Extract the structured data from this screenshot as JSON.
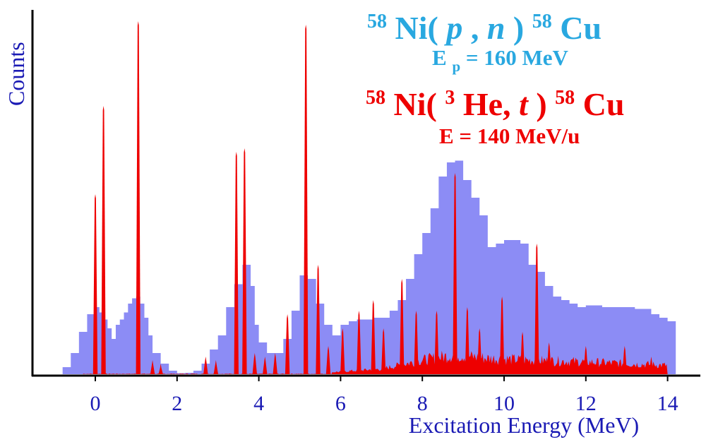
{
  "chart_data": {
    "type": "area",
    "title": "",
    "xlabel": "Excitation Energy (MeV)",
    "ylabel": "Counts",
    "xlim": [
      -1.5,
      14.7
    ],
    "ylim": [
      0,
      1
    ],
    "grid": false,
    "x_ticks": [
      "0",
      "2",
      "4",
      "6",
      "8",
      "10",
      "12",
      "14"
    ],
    "y_ticks": [],
    "legend_position": "top-right",
    "series": [
      {
        "name": "58Ni(p, n)58Cu",
        "subtitle": "Ep = 160 MeV",
        "color": "#8c8cf5",
        "style": "histogram",
        "points": [
          [
            -1.0,
            0.0
          ],
          [
            -0.8,
            0.02
          ],
          [
            -0.6,
            0.06
          ],
          [
            -0.4,
            0.12
          ],
          [
            -0.2,
            0.17
          ],
          [
            0.0,
            0.19
          ],
          [
            0.1,
            0.175
          ],
          [
            0.2,
            0.155
          ],
          [
            0.3,
            0.13
          ],
          [
            0.4,
            0.1
          ],
          [
            0.5,
            0.14
          ],
          [
            0.6,
            0.155
          ],
          [
            0.7,
            0.175
          ],
          [
            0.8,
            0.2
          ],
          [
            0.9,
            0.215
          ],
          [
            1.0,
            0.22
          ],
          [
            1.1,
            0.2
          ],
          [
            1.2,
            0.16
          ],
          [
            1.3,
            0.11
          ],
          [
            1.4,
            0.06
          ],
          [
            1.6,
            0.03
          ],
          [
            1.8,
            0.01
          ],
          [
            2.0,
            0.003
          ],
          [
            2.2,
            0.004
          ],
          [
            2.4,
            0.01
          ],
          [
            2.6,
            0.03
          ],
          [
            2.8,
            0.07
          ],
          [
            3.0,
            0.11
          ],
          [
            3.2,
            0.19
          ],
          [
            3.4,
            0.255
          ],
          [
            3.6,
            0.31
          ],
          [
            3.8,
            0.25
          ],
          [
            3.9,
            0.14
          ],
          [
            4.0,
            0.09
          ],
          [
            4.2,
            0.06
          ],
          [
            4.4,
            0.06
          ],
          [
            4.6,
            0.1
          ],
          [
            4.8,
            0.18
          ],
          [
            5.0,
            0.28
          ],
          [
            5.2,
            0.27
          ],
          [
            5.4,
            0.2
          ],
          [
            5.6,
            0.14
          ],
          [
            5.8,
            0.11
          ],
          [
            6.0,
            0.14
          ],
          [
            6.2,
            0.15
          ],
          [
            6.4,
            0.155
          ],
          [
            6.6,
            0.155
          ],
          [
            6.8,
            0.16
          ],
          [
            7.0,
            0.16
          ],
          [
            7.2,
            0.18
          ],
          [
            7.4,
            0.21
          ],
          [
            7.6,
            0.27
          ],
          [
            7.8,
            0.34
          ],
          [
            8.0,
            0.4
          ],
          [
            8.2,
            0.47
          ],
          [
            8.4,
            0.56
          ],
          [
            8.6,
            0.6
          ],
          [
            8.8,
            0.605
          ],
          [
            9.0,
            0.55
          ],
          [
            9.2,
            0.5
          ],
          [
            9.4,
            0.45
          ],
          [
            9.6,
            0.36
          ],
          [
            9.8,
            0.37
          ],
          [
            10.0,
            0.38
          ],
          [
            10.2,
            0.38
          ],
          [
            10.4,
            0.37
          ],
          [
            10.6,
            0.31
          ],
          [
            10.8,
            0.29
          ],
          [
            11.0,
            0.25
          ],
          [
            11.2,
            0.22
          ],
          [
            11.4,
            0.21
          ],
          [
            11.6,
            0.2
          ],
          [
            11.8,
            0.19
          ],
          [
            12.0,
            0.195
          ],
          [
            12.4,
            0.19
          ],
          [
            12.8,
            0.19
          ],
          [
            13.2,
            0.185
          ],
          [
            13.6,
            0.17
          ],
          [
            13.8,
            0.16
          ],
          [
            14.0,
            0.15
          ]
        ]
      },
      {
        "name": "58Ni(3He, t)58Cu",
        "subtitle": "E = 140 MeV/u",
        "color": "#ee0000",
        "style": "spectrum",
        "peaks": [
          [
            0.0,
            0.51
          ],
          [
            0.2,
            0.76
          ],
          [
            1.05,
            1.0
          ],
          [
            1.4,
            0.04
          ],
          [
            1.6,
            0.03
          ],
          [
            2.7,
            0.05
          ],
          [
            2.95,
            0.04
          ],
          [
            3.45,
            0.63
          ],
          [
            3.65,
            0.64
          ],
          [
            3.9,
            0.06
          ],
          [
            4.15,
            0.05
          ],
          [
            4.4,
            0.06
          ],
          [
            4.7,
            0.17
          ],
          [
            5.15,
            0.99
          ],
          [
            5.45,
            0.31
          ],
          [
            5.7,
            0.08
          ],
          [
            6.05,
            0.13
          ],
          [
            6.45,
            0.18
          ],
          [
            6.8,
            0.21
          ],
          [
            7.05,
            0.13
          ],
          [
            7.5,
            0.27
          ],
          [
            7.85,
            0.18
          ],
          [
            8.35,
            0.18
          ],
          [
            8.8,
            0.57
          ],
          [
            9.1,
            0.19
          ],
          [
            9.4,
            0.13
          ],
          [
            9.95,
            0.22
          ],
          [
            10.45,
            0.12
          ],
          [
            10.8,
            0.37
          ],
          [
            11.1,
            0.09
          ],
          [
            12.0,
            0.08
          ],
          [
            12.95,
            0.08
          ],
          [
            13.6,
            0.05
          ]
        ],
        "continuum": [
          [
            5.8,
            0.006
          ],
          [
            7.0,
            0.015
          ],
          [
            8.0,
            0.04
          ],
          [
            8.8,
            0.055
          ],
          [
            9.6,
            0.045
          ],
          [
            10.6,
            0.04
          ],
          [
            12.0,
            0.035
          ],
          [
            13.0,
            0.03
          ],
          [
            14.0,
            0.025
          ]
        ]
      }
    ]
  },
  "legend": {
    "blue_sup1": "58",
    "blue_text1": "Ni(",
    "blue_ital1": "p",
    "blue_text2": ", ",
    "blue_ital2": "n",
    "blue_text3": ")",
    "blue_sup2": "58",
    "blue_text4": "Cu",
    "blue_sub_main": "E",
    "blue_sub_sub": "p",
    "blue_sub_value": " = 160 MeV",
    "red_sup1": "58",
    "red_text1": "Ni(",
    "red_sup2": "3",
    "red_text2": "He, ",
    "red_ital": "t",
    "red_text3": ")",
    "red_sup3": "58",
    "red_text4": "Cu",
    "red_energy": "E = 140 MeV/u"
  }
}
